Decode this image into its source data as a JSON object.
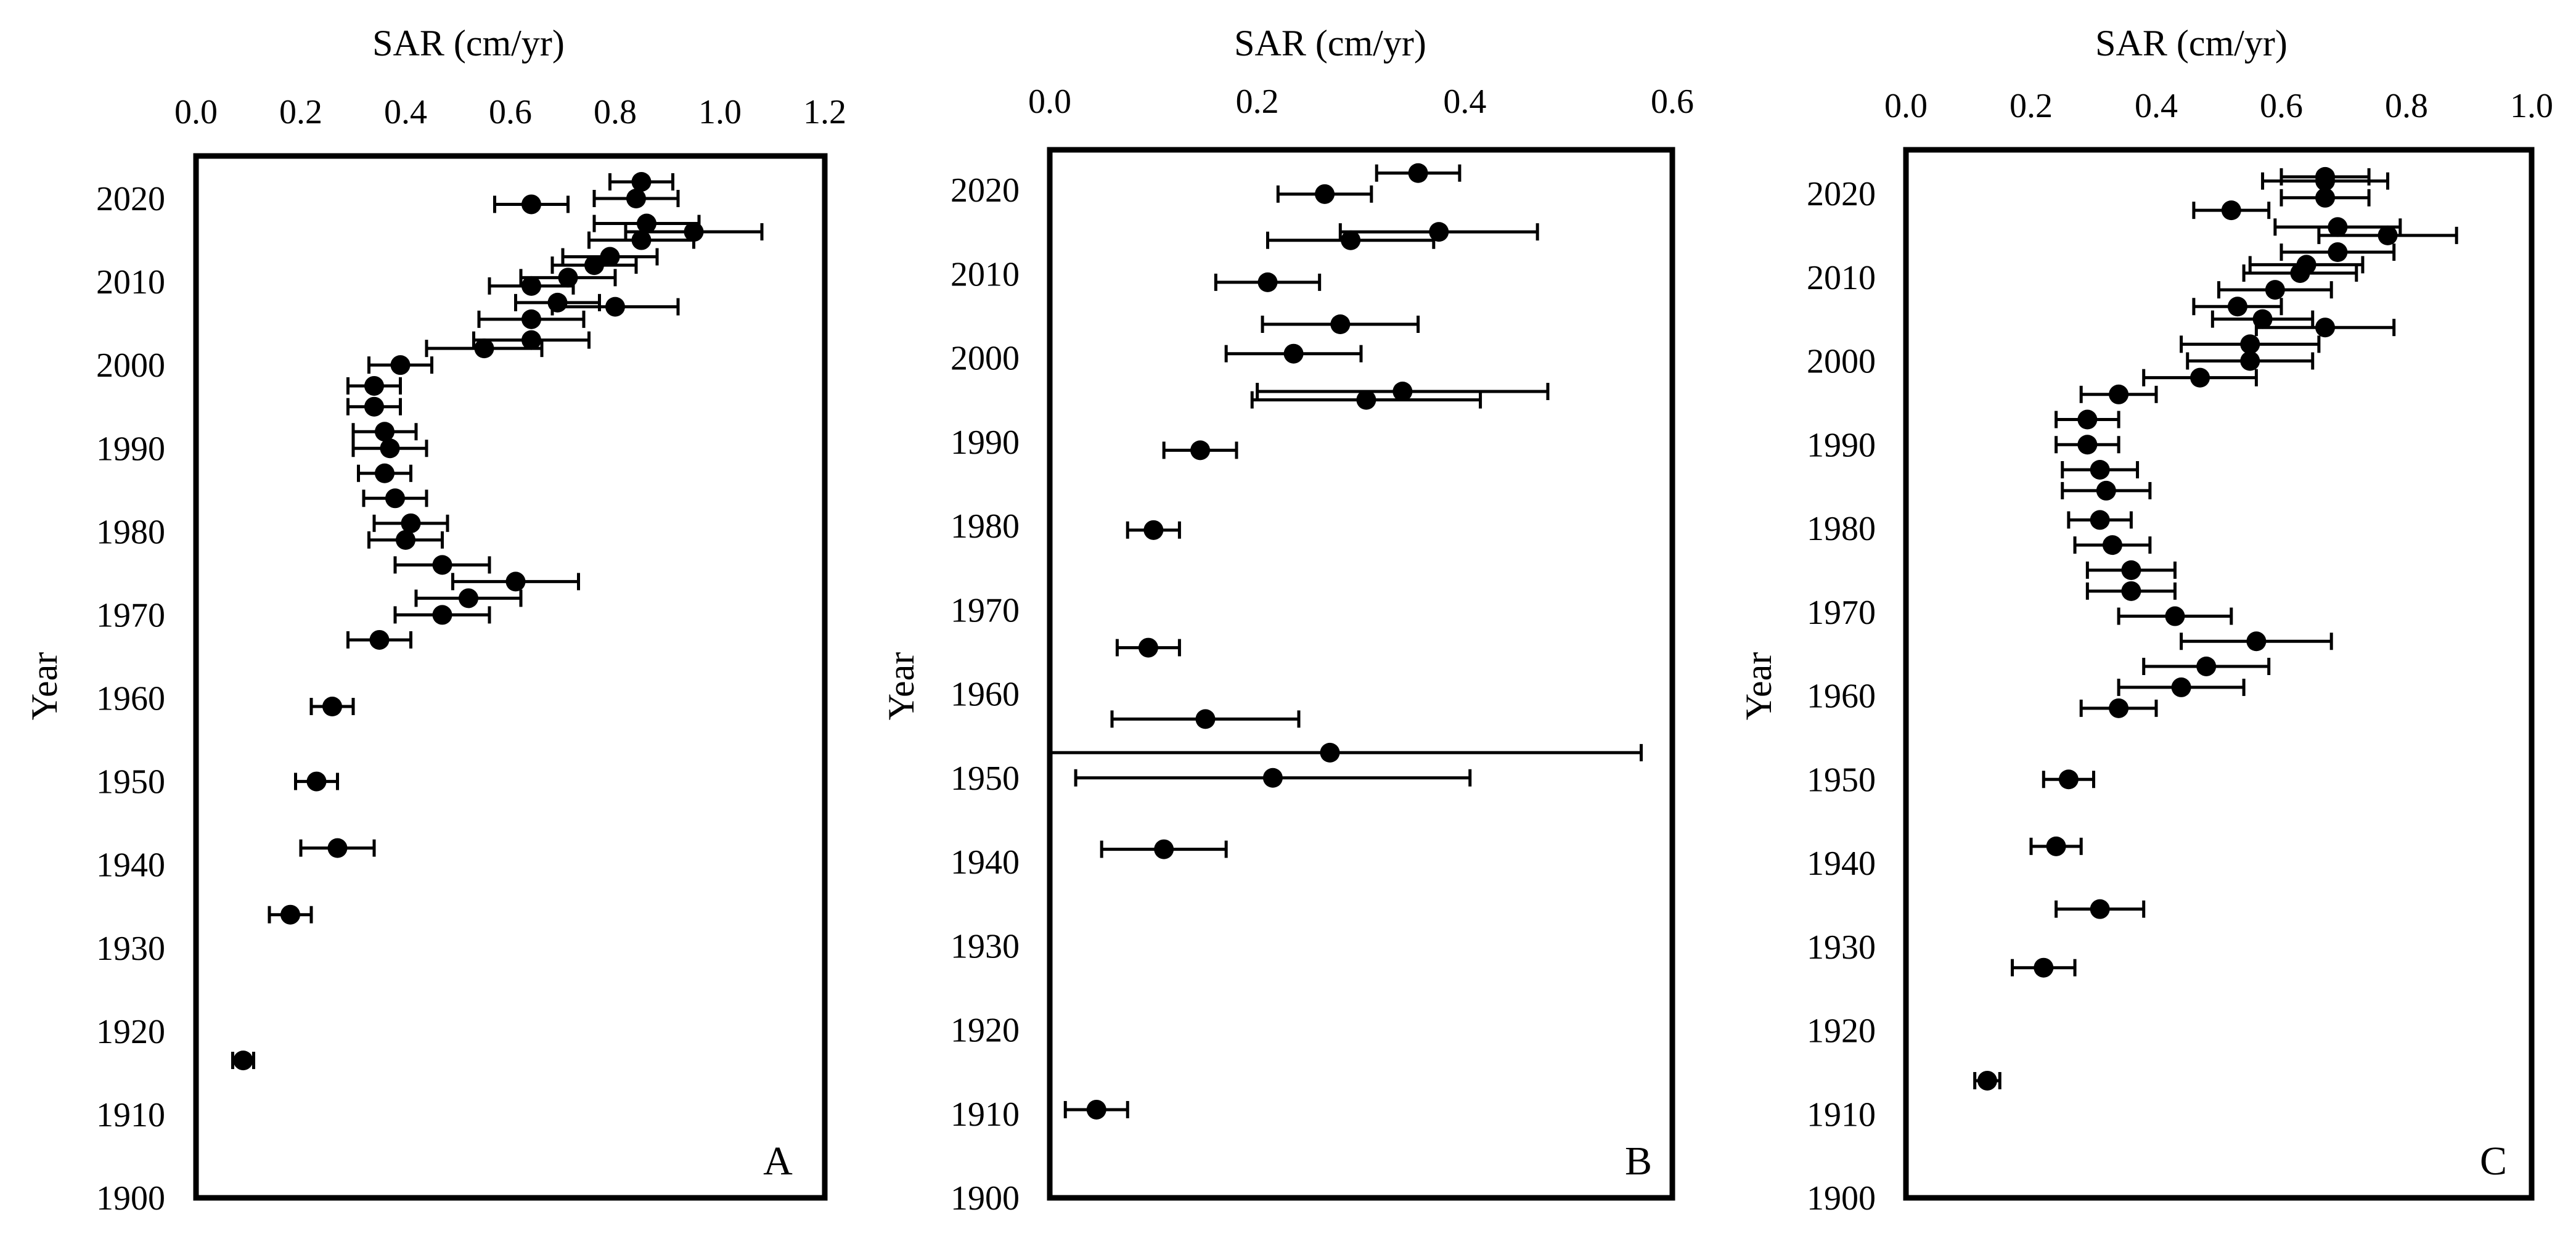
{
  "figure": {
    "description_free": true
  },
  "chart_data": [
    {
      "type": "scatter",
      "panel_label": "A",
      "title": "",
      "xlabel": "SAR (cm/yr)",
      "ylabel": "Year",
      "xlim": [
        0.0,
        1.2
      ],
      "ylim": [
        1900,
        2025
      ],
      "x_ticks": [
        0.0,
        0.2,
        0.4,
        0.6,
        0.8,
        1.0,
        1.2
      ],
      "x_tick_labels": [
        "0.0",
        "0.2",
        "0.4",
        "0.6",
        "0.8",
        "1.0",
        "1.2"
      ],
      "y_ticks": [
        1900,
        1910,
        1920,
        1930,
        1940,
        1950,
        1960,
        1970,
        1980,
        1990,
        2000,
        2010,
        2020
      ],
      "y_tick_labels": [
        "1900",
        "1910",
        "1920",
        "1930",
        "1940",
        "1950",
        "1960",
        "1970",
        "1980",
        "1990",
        "2000",
        "2010",
        "2020"
      ],
      "grid": false,
      "points": [
        {
          "year": 2022.0,
          "sar": 0.85,
          "err": 0.06
        },
        {
          "year": 2020.0,
          "sar": 0.84,
          "err": 0.08
        },
        {
          "year": 2019.3,
          "sar": 0.64,
          "err": 0.07
        },
        {
          "year": 2017.0,
          "sar": 0.86,
          "err": 0.1
        },
        {
          "year": 2016.0,
          "sar": 0.95,
          "err": 0.13
        },
        {
          "year": 2015.0,
          "sar": 0.85,
          "err": 0.1
        },
        {
          "year": 2013.0,
          "sar": 0.79,
          "err": 0.09
        },
        {
          "year": 2012.0,
          "sar": 0.76,
          "err": 0.08
        },
        {
          "year": 2010.5,
          "sar": 0.71,
          "err": 0.09
        },
        {
          "year": 2009.5,
          "sar": 0.64,
          "err": 0.08
        },
        {
          "year": 2007.5,
          "sar": 0.69,
          "err": 0.08
        },
        {
          "year": 2007.0,
          "sar": 0.8,
          "err": 0.12
        },
        {
          "year": 2005.5,
          "sar": 0.64,
          "err": 0.1
        },
        {
          "year": 2003.0,
          "sar": 0.64,
          "err": 0.11
        },
        {
          "year": 2002.0,
          "sar": 0.55,
          "err": 0.11
        },
        {
          "year": 2000.0,
          "sar": 0.39,
          "err": 0.06
        },
        {
          "year": 1997.5,
          "sar": 0.34,
          "err": 0.05
        },
        {
          "year": 1995.0,
          "sar": 0.34,
          "err": 0.05
        },
        {
          "year": 1992.0,
          "sar": 0.36,
          "err": 0.06
        },
        {
          "year": 1990.0,
          "sar": 0.37,
          "err": 0.07
        },
        {
          "year": 1987.0,
          "sar": 0.36,
          "err": 0.05
        },
        {
          "year": 1984.0,
          "sar": 0.38,
          "err": 0.06
        },
        {
          "year": 1981.0,
          "sar": 0.41,
          "err": 0.07
        },
        {
          "year": 1979.0,
          "sar": 0.4,
          "err": 0.07
        },
        {
          "year": 1976.0,
          "sar": 0.47,
          "err": 0.09
        },
        {
          "year": 1974.0,
          "sar": 0.61,
          "err": 0.12
        },
        {
          "year": 1972.0,
          "sar": 0.52,
          "err": 0.1
        },
        {
          "year": 1970.0,
          "sar": 0.47,
          "err": 0.09
        },
        {
          "year": 1967.0,
          "sar": 0.35,
          "err": 0.06
        },
        {
          "year": 1959.0,
          "sar": 0.26,
          "err": 0.04
        },
        {
          "year": 1950.0,
          "sar": 0.23,
          "err": 0.04
        },
        {
          "year": 1942.0,
          "sar": 0.27,
          "err": 0.07
        },
        {
          "year": 1934.0,
          "sar": 0.18,
          "err": 0.04
        },
        {
          "year": 1916.5,
          "sar": 0.09,
          "err": 0.02
        }
      ]
    },
    {
      "type": "scatter",
      "panel_label": "B",
      "title": "",
      "xlabel": "SAR (cm/yr)",
      "ylabel": "Year",
      "xlim": [
        0.0,
        0.6
      ],
      "ylim": [
        1900,
        2025
      ],
      "x_ticks": [
        0.0,
        0.2,
        0.4,
        0.6
      ],
      "x_tick_labels": [
        "0.0",
        "0.2",
        "0.4",
        "0.6"
      ],
      "y_ticks": [
        1900,
        1910,
        1920,
        1930,
        1940,
        1950,
        1960,
        1970,
        1980,
        1990,
        2000,
        2010,
        2020
      ],
      "y_tick_labels": [
        "1900",
        "1910",
        "1920",
        "1930",
        "1940",
        "1950",
        "1960",
        "1970",
        "1980",
        "1990",
        "2000",
        "2010",
        "2020"
      ],
      "grid": false,
      "points": [
        {
          "year": 2022.0,
          "sar": 0.355,
          "err": 0.04
        },
        {
          "year": 2019.5,
          "sar": 0.265,
          "err": 0.045
        },
        {
          "year": 2015.0,
          "sar": 0.375,
          "err": 0.095
        },
        {
          "year": 2014.0,
          "sar": 0.29,
          "err": 0.08
        },
        {
          "year": 2009.0,
          "sar": 0.21,
          "err": 0.05
        },
        {
          "year": 2004.0,
          "sar": 0.28,
          "err": 0.075
        },
        {
          "year": 2000.5,
          "sar": 0.235,
          "err": 0.065
        },
        {
          "year": 1996.0,
          "sar": 0.34,
          "err": 0.14
        },
        {
          "year": 1995.0,
          "sar": 0.305,
          "err": 0.11
        },
        {
          "year": 1989.0,
          "sar": 0.145,
          "err": 0.035
        },
        {
          "year": 1979.5,
          "sar": 0.1,
          "err": 0.025
        },
        {
          "year": 1965.5,
          "sar": 0.095,
          "err": 0.03
        },
        {
          "year": 1957.0,
          "sar": 0.15,
          "err": 0.09
        },
        {
          "year": 1953.0,
          "sar": 0.27,
          "err": 0.3
        },
        {
          "year": 1950.0,
          "sar": 0.215,
          "err": 0.19
        },
        {
          "year": 1941.5,
          "sar": 0.11,
          "err": 0.06
        },
        {
          "year": 1910.5,
          "sar": 0.045,
          "err": 0.03
        }
      ]
    },
    {
      "type": "scatter",
      "panel_label": "C",
      "title": "",
      "xlabel": "SAR (cm/yr)",
      "ylabel": "Year",
      "xlim": [
        0.0,
        1.0
      ],
      "ylim": [
        1900,
        2025
      ],
      "x_ticks": [
        0.0,
        0.2,
        0.4,
        0.6,
        0.8,
        1.0
      ],
      "x_tick_labels": [
        "0.0",
        "0.2",
        "0.4",
        "0.6",
        "0.8",
        "1.0"
      ],
      "y_ticks": [
        1900,
        1910,
        1920,
        1930,
        1940,
        1950,
        1960,
        1970,
        1980,
        1990,
        2000,
        2010,
        2020
      ],
      "y_tick_labels": [
        "1900",
        "1910",
        "1920",
        "1930",
        "1940",
        "1950",
        "1960",
        "1970",
        "1980",
        "1990",
        "2000",
        "2010",
        "2020"
      ],
      "grid": false,
      "points": [
        {
          "year": 2022.0,
          "sar": 0.67,
          "err": 0.07
        },
        {
          "year": 2021.5,
          "sar": 0.67,
          "err": 0.1
        },
        {
          "year": 2019.5,
          "sar": 0.67,
          "err": 0.07
        },
        {
          "year": 2018.0,
          "sar": 0.52,
          "err": 0.06
        },
        {
          "year": 2016.0,
          "sar": 0.69,
          "err": 0.1
        },
        {
          "year": 2015.0,
          "sar": 0.77,
          "err": 0.11
        },
        {
          "year": 2013.0,
          "sar": 0.69,
          "err": 0.09
        },
        {
          "year": 2011.5,
          "sar": 0.64,
          "err": 0.09
        },
        {
          "year": 2010.5,
          "sar": 0.63,
          "err": 0.09
        },
        {
          "year": 2008.5,
          "sar": 0.59,
          "err": 0.09
        },
        {
          "year": 2006.5,
          "sar": 0.53,
          "err": 0.07
        },
        {
          "year": 2005.0,
          "sar": 0.57,
          "err": 0.08
        },
        {
          "year": 2004.0,
          "sar": 0.67,
          "err": 0.11
        },
        {
          "year": 2002.0,
          "sar": 0.55,
          "err": 0.11
        },
        {
          "year": 2000.0,
          "sar": 0.55,
          "err": 0.1
        },
        {
          "year": 1998.0,
          "sar": 0.47,
          "err": 0.09
        },
        {
          "year": 1996.0,
          "sar": 0.34,
          "err": 0.06
        },
        {
          "year": 1993.0,
          "sar": 0.29,
          "err": 0.05
        },
        {
          "year": 1990.0,
          "sar": 0.29,
          "err": 0.05
        },
        {
          "year": 1987.0,
          "sar": 0.31,
          "err": 0.06
        },
        {
          "year": 1984.5,
          "sar": 0.32,
          "err": 0.07
        },
        {
          "year": 1981.0,
          "sar": 0.31,
          "err": 0.05
        },
        {
          "year": 1978.0,
          "sar": 0.33,
          "err": 0.06
        },
        {
          "year": 1975.0,
          "sar": 0.36,
          "err": 0.07
        },
        {
          "year": 1972.5,
          "sar": 0.36,
          "err": 0.07
        },
        {
          "year": 1969.5,
          "sar": 0.43,
          "err": 0.09
        },
        {
          "year": 1966.5,
          "sar": 0.56,
          "err": 0.12
        },
        {
          "year": 1963.5,
          "sar": 0.48,
          "err": 0.1
        },
        {
          "year": 1961.0,
          "sar": 0.44,
          "err": 0.1
        },
        {
          "year": 1958.5,
          "sar": 0.34,
          "err": 0.06
        },
        {
          "year": 1950.0,
          "sar": 0.26,
          "err": 0.04
        },
        {
          "year": 1942.0,
          "sar": 0.24,
          "err": 0.04
        },
        {
          "year": 1934.5,
          "sar": 0.31,
          "err": 0.07
        },
        {
          "year": 1927.5,
          "sar": 0.22,
          "err": 0.05
        },
        {
          "year": 1914.0,
          "sar": 0.13,
          "err": 0.02
        }
      ]
    }
  ]
}
